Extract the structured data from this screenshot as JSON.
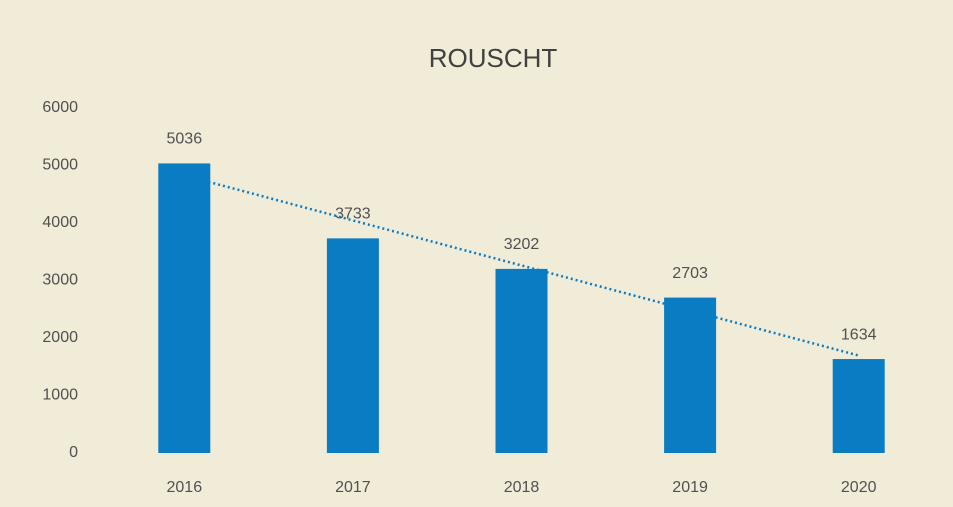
{
  "chart_data": {
    "type": "bar",
    "title": "ROUSCHT",
    "categories": [
      "2016",
      "2017",
      "2018",
      "2019",
      "2020"
    ],
    "values": [
      5036,
      3733,
      3202,
      2703,
      1634
    ],
    "color": "#0a7cc4",
    "ylim": [
      0,
      6000
    ],
    "yticks": [
      0,
      1000,
      2000,
      3000,
      4000,
      5000,
      6000
    ],
    "grid": false,
    "trendline": "linear"
  }
}
